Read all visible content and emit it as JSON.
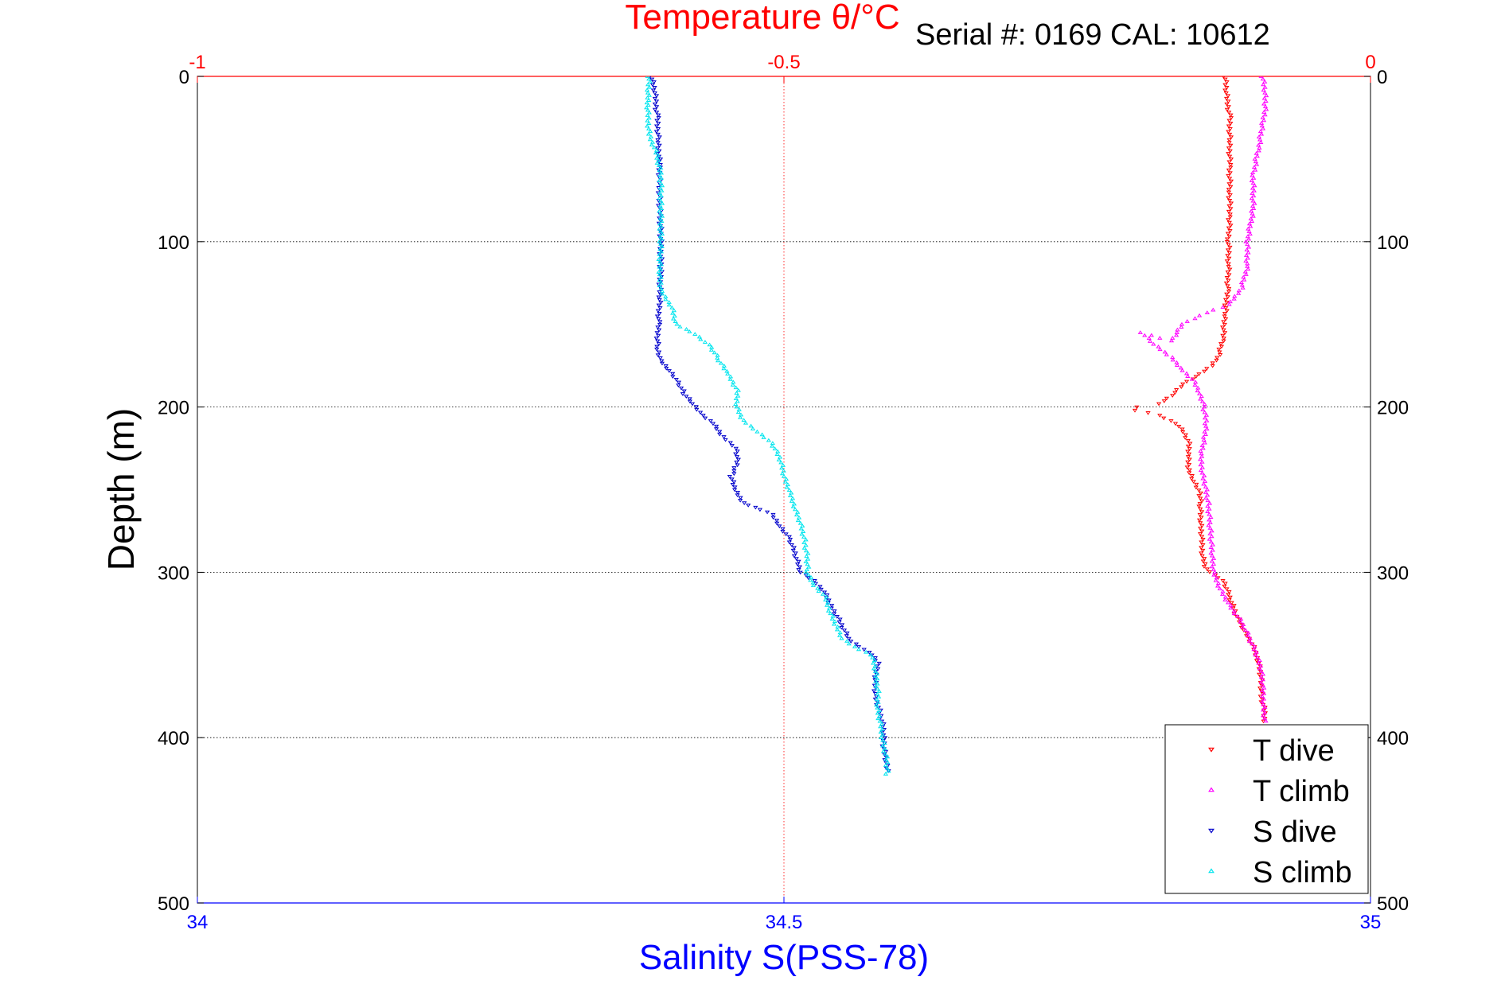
{
  "chart_data": {
    "type": "scatter",
    "title": "Temperature θ/°C",
    "subtitle": "Serial #: 0169 CAL: 10612",
    "ylabel": "Depth (m)",
    "xlabel": "Salinity S(PSS-78)",
    "y_range": [
      0,
      500
    ],
    "y_ticks": [
      "0",
      "100",
      "200",
      "300",
      "400",
      "500"
    ],
    "y_reversed": true,
    "x_bottom_range": [
      34,
      35
    ],
    "x_bottom_ticks": [
      "34",
      "34.5",
      "35"
    ],
    "x_top_range": [
      -1,
      0
    ],
    "x_top_ticks": [
      "-1",
      "-0.5",
      "0"
    ],
    "grid": true,
    "legend_position": "bottom-right",
    "colors": {
      "title": "#ff0000",
      "xlabel": "#0000ff",
      "T_dive": "#ff0000",
      "T_climb": "#ff00ff",
      "S_dive": "#0000cc",
      "S_climb": "#00e5ee"
    },
    "series": [
      {
        "name": "T dive",
        "axis": "top",
        "marker": "triangle-down",
        "points": [
          [
            -0.124,
            0
          ],
          [
            -0.123,
            10
          ],
          [
            -0.12,
            25
          ],
          [
            -0.12,
            40
          ],
          [
            -0.12,
            55
          ],
          [
            -0.12,
            70
          ],
          [
            -0.12,
            85
          ],
          [
            -0.121,
            100
          ],
          [
            -0.121,
            115
          ],
          [
            -0.122,
            130
          ],
          [
            -0.124,
            145
          ],
          [
            -0.126,
            160
          ],
          [
            -0.13,
            170
          ],
          [
            -0.135,
            175
          ],
          [
            -0.145,
            180
          ],
          [
            -0.16,
            186
          ],
          [
            -0.17,
            193
          ],
          [
            -0.18,
            198
          ],
          [
            -0.2,
            200
          ],
          [
            -0.2,
            202
          ],
          [
            -0.18,
            205
          ],
          [
            -0.165,
            210
          ],
          [
            -0.16,
            215
          ],
          [
            -0.155,
            222
          ],
          [
            -0.155,
            230
          ],
          [
            -0.155,
            238
          ],
          [
            -0.15,
            245
          ],
          [
            -0.145,
            252
          ],
          [
            -0.145,
            260
          ],
          [
            -0.145,
            270
          ],
          [
            -0.144,
            280
          ],
          [
            -0.143,
            290
          ],
          [
            -0.14,
            298
          ],
          [
            -0.125,
            305
          ],
          [
            -0.12,
            315
          ],
          [
            -0.115,
            325
          ],
          [
            -0.108,
            335
          ],
          [
            -0.1,
            345
          ],
          [
            -0.095,
            355
          ],
          [
            -0.093,
            365
          ],
          [
            -0.093,
            375
          ],
          [
            -0.09,
            385
          ],
          [
            -0.09,
            390
          ]
        ]
      },
      {
        "name": "T climb",
        "axis": "top",
        "marker": "triangle-up",
        "points": [
          [
            -0.092,
            0
          ],
          [
            -0.09,
            10
          ],
          [
            -0.09,
            20
          ],
          [
            -0.092,
            30
          ],
          [
            -0.096,
            45
          ],
          [
            -0.1,
            60
          ],
          [
            -0.1,
            80
          ],
          [
            -0.105,
            100
          ],
          [
            -0.105,
            115
          ],
          [
            -0.11,
            128
          ],
          [
            -0.12,
            138
          ],
          [
            -0.14,
            143
          ],
          [
            -0.16,
            150
          ],
          [
            -0.17,
            160
          ],
          [
            -0.195,
            155
          ],
          [
            -0.185,
            162
          ],
          [
            -0.17,
            170
          ],
          [
            -0.16,
            178
          ],
          [
            -0.15,
            185
          ],
          [
            -0.145,
            192
          ],
          [
            -0.142,
            200
          ],
          [
            -0.14,
            210
          ],
          [
            -0.142,
            220
          ],
          [
            -0.145,
            230
          ],
          [
            -0.143,
            240
          ],
          [
            -0.14,
            250
          ],
          [
            -0.138,
            260
          ],
          [
            -0.137,
            270
          ],
          [
            -0.136,
            280
          ],
          [
            -0.135,
            290
          ],
          [
            -0.134,
            300
          ],
          [
            -0.128,
            310
          ],
          [
            -0.12,
            320
          ],
          [
            -0.11,
            330
          ],
          [
            -0.103,
            340
          ],
          [
            -0.097,
            350
          ],
          [
            -0.093,
            360
          ],
          [
            -0.092,
            370
          ],
          [
            -0.091,
            380
          ],
          [
            -0.09,
            390
          ]
        ]
      },
      {
        "name": "S dive",
        "axis": "bottom",
        "marker": "triangle-down",
        "points": [
          [
            34.387,
            0
          ],
          [
            34.39,
            10
          ],
          [
            34.392,
            25
          ],
          [
            34.393,
            40
          ],
          [
            34.394,
            55
          ],
          [
            34.394,
            75
          ],
          [
            34.395,
            95
          ],
          [
            34.395,
            115
          ],
          [
            34.394,
            135
          ],
          [
            34.393,
            150
          ],
          [
            34.392,
            165
          ],
          [
            34.395,
            172
          ],
          [
            34.403,
            178
          ],
          [
            34.41,
            185
          ],
          [
            34.415,
            192
          ],
          [
            34.422,
            198
          ],
          [
            34.43,
            205
          ],
          [
            34.44,
            210
          ],
          [
            34.448,
            218
          ],
          [
            34.46,
            225
          ],
          [
            34.46,
            235
          ],
          [
            34.455,
            242
          ],
          [
            34.458,
            250
          ],
          [
            34.465,
            258
          ],
          [
            34.48,
            262
          ],
          [
            34.49,
            265
          ],
          [
            34.497,
            272
          ],
          [
            34.505,
            280
          ],
          [
            34.51,
            290
          ],
          [
            34.514,
            300
          ],
          [
            34.525,
            305
          ],
          [
            34.535,
            312
          ],
          [
            34.54,
            320
          ],
          [
            34.548,
            330
          ],
          [
            34.555,
            340
          ],
          [
            34.565,
            345
          ],
          [
            34.575,
            350
          ],
          [
            34.58,
            355
          ],
          [
            34.578,
            365
          ],
          [
            34.578,
            375
          ],
          [
            34.582,
            385
          ],
          [
            34.585,
            395
          ],
          [
            34.585,
            405
          ],
          [
            34.587,
            415
          ],
          [
            34.588,
            420
          ]
        ]
      },
      {
        "name": "S climb",
        "axis": "bottom",
        "marker": "triangle-up",
        "points": [
          [
            34.385,
            0
          ],
          [
            34.384,
            10
          ],
          [
            34.384,
            22
          ],
          [
            34.385,
            35
          ],
          [
            34.392,
            48
          ],
          [
            34.395,
            60
          ],
          [
            34.395,
            80
          ],
          [
            34.395,
            100
          ],
          [
            34.394,
            120
          ],
          [
            34.395,
            130
          ],
          [
            34.405,
            140
          ],
          [
            34.408,
            150
          ],
          [
            34.425,
            156
          ],
          [
            34.438,
            164
          ],
          [
            34.445,
            172
          ],
          [
            34.452,
            180
          ],
          [
            34.46,
            190
          ],
          [
            34.46,
            200
          ],
          [
            34.465,
            208
          ],
          [
            34.478,
            215
          ],
          [
            34.49,
            222
          ],
          [
            34.497,
            232
          ],
          [
            34.5,
            242
          ],
          [
            34.505,
            252
          ],
          [
            34.51,
            262
          ],
          [
            34.515,
            272
          ],
          [
            34.518,
            282
          ],
          [
            34.52,
            292
          ],
          [
            34.52,
            300
          ],
          [
            34.525,
            308
          ],
          [
            34.535,
            315
          ],
          [
            34.54,
            325
          ],
          [
            34.545,
            333
          ],
          [
            34.55,
            340
          ],
          [
            34.56,
            345
          ],
          [
            34.575,
            350
          ],
          [
            34.578,
            360
          ],
          [
            34.58,
            372
          ],
          [
            34.58,
            382
          ],
          [
            34.583,
            395
          ],
          [
            34.585,
            405
          ],
          [
            34.588,
            415
          ],
          [
            34.588,
            422
          ]
        ]
      }
    ]
  }
}
